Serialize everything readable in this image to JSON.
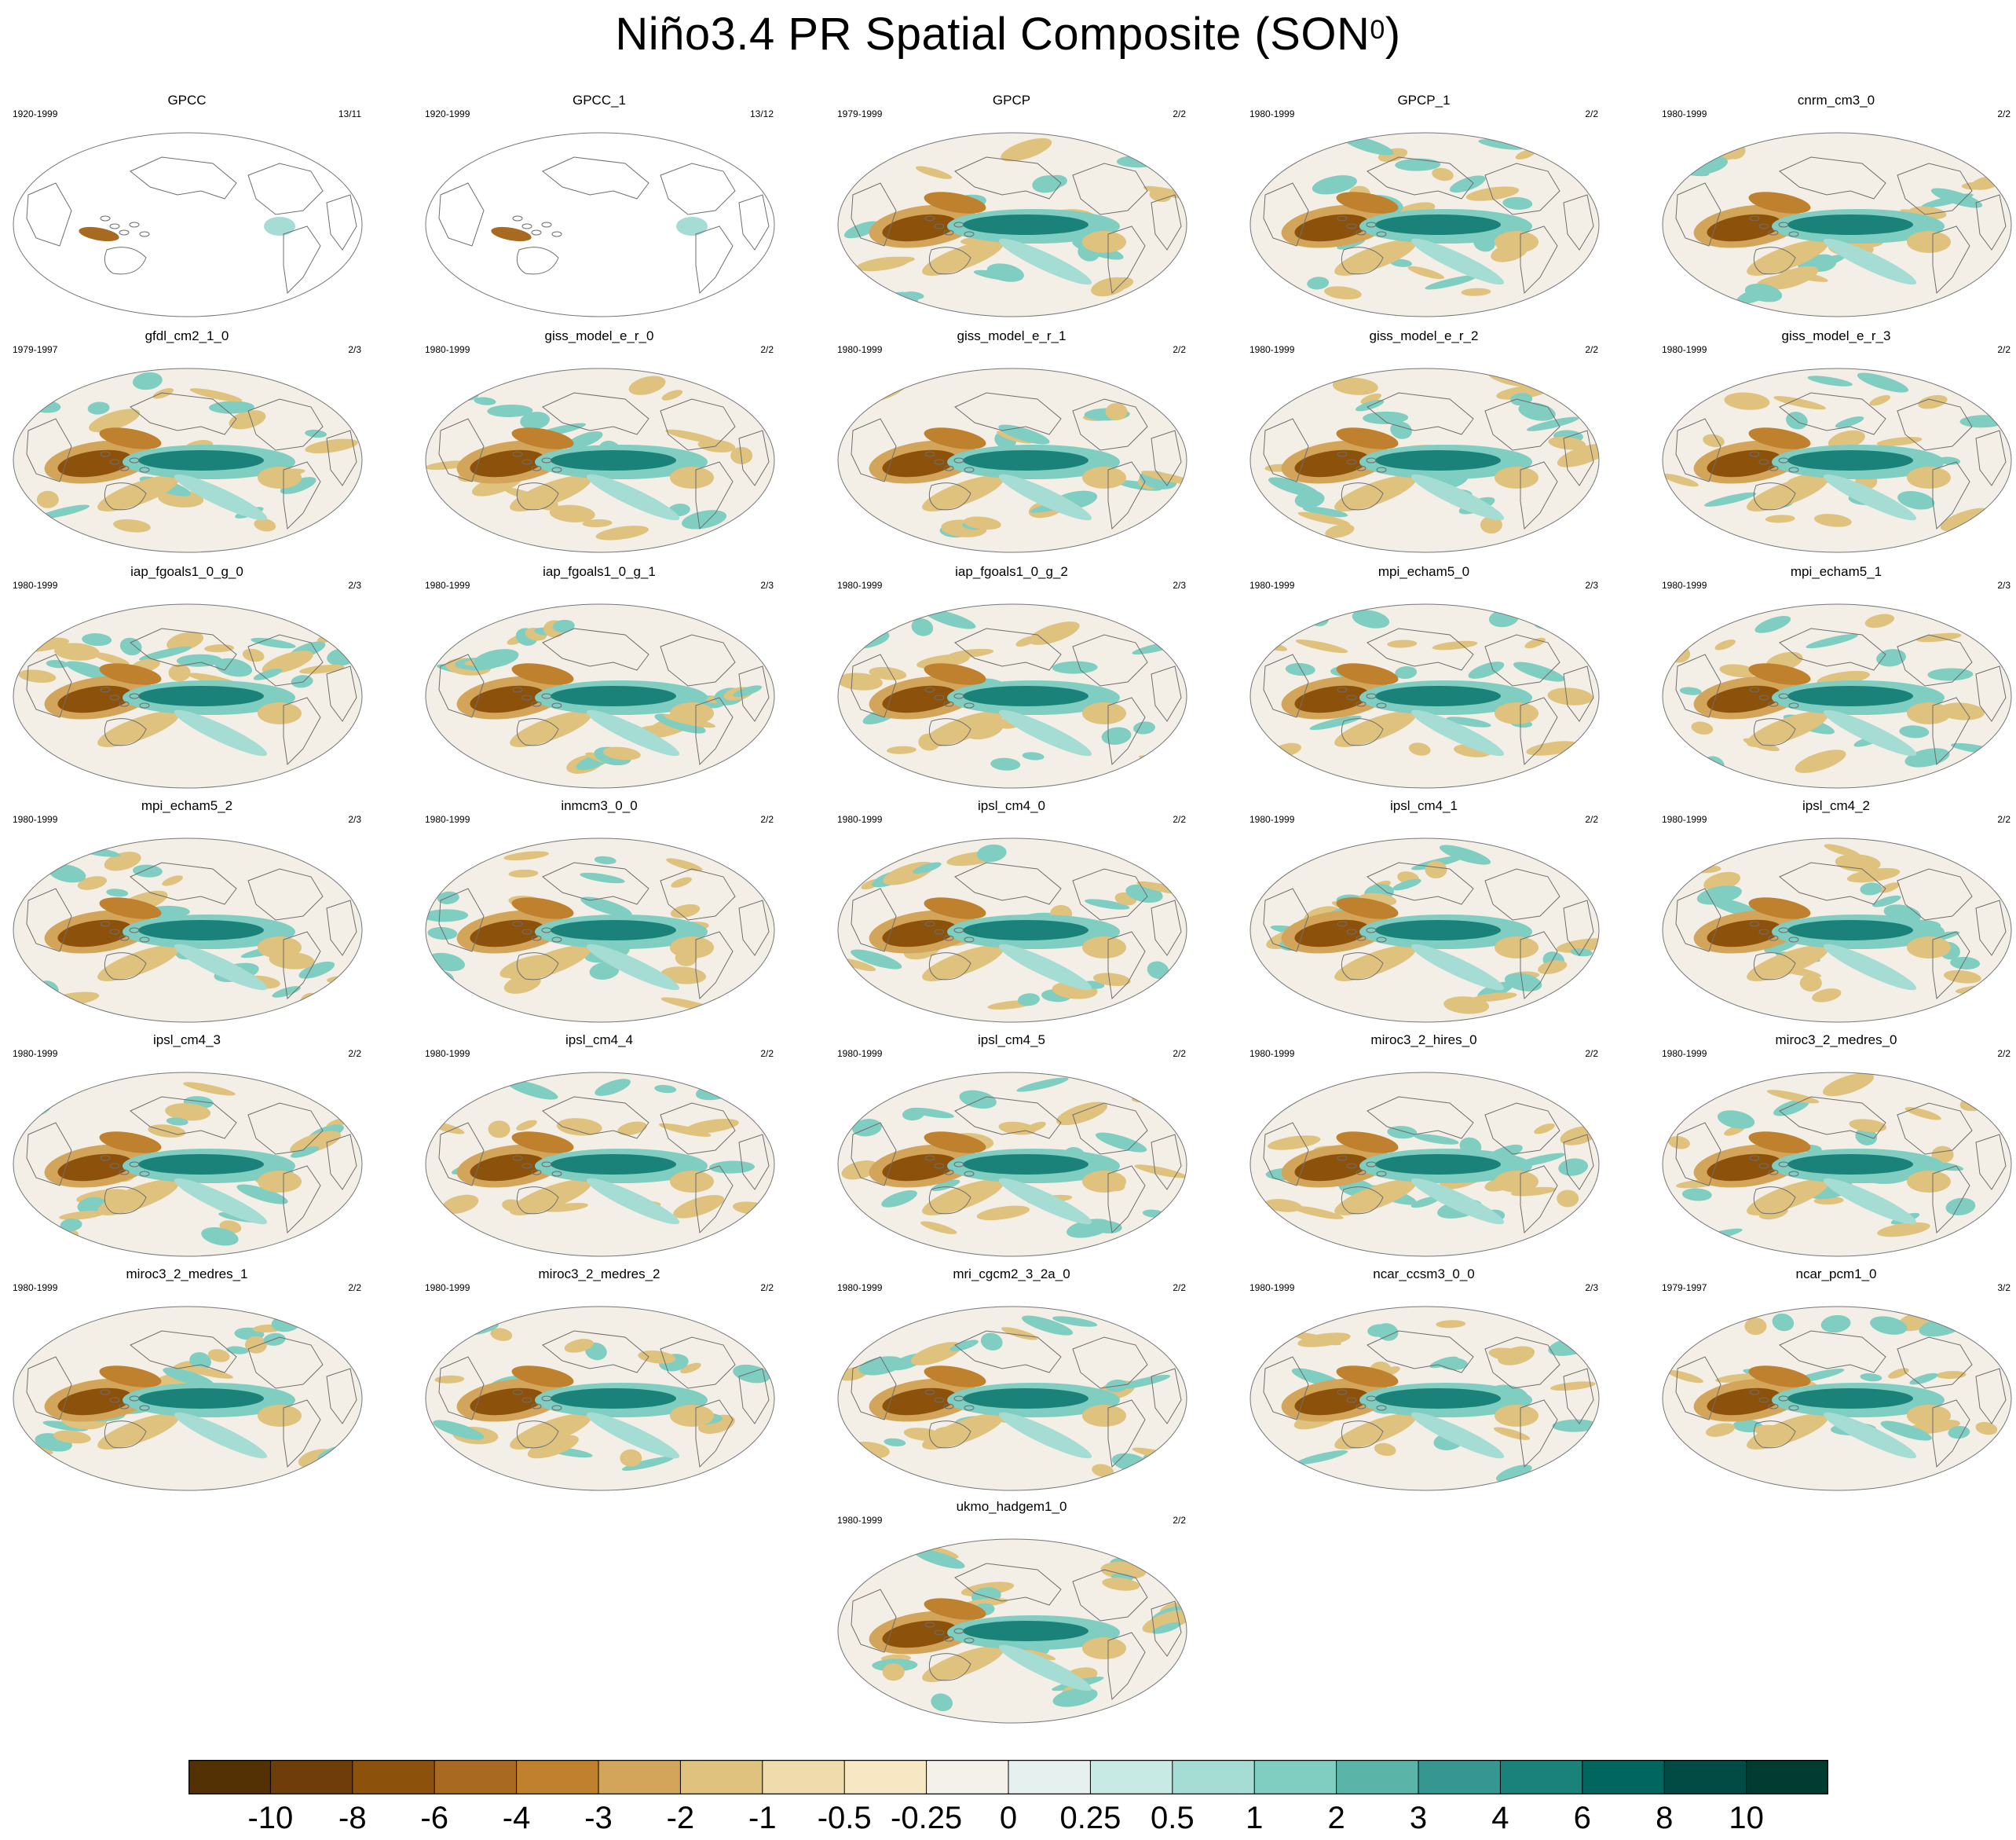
{
  "title": "Niño3.4 PR Spatial Composite (SON",
  "title_superscript": "0",
  "title_suffix": ")",
  "panels": [
    {
      "name": "GPCC",
      "years": "1920-1999",
      "count": "13/11",
      "style": "obs-land",
      "colors": {
        "wc": "#b1dbd3",
        "eq": "#e6ecea",
        "wp": "#9c6220"
      }
    },
    {
      "name": "GPCC_1",
      "years": "1920-1999",
      "count": "13/12",
      "style": "obs-land",
      "colors": {
        "wc": "#b1dbd3",
        "eq": "#e6ecea",
        "wp": "#9c6220"
      }
    },
    {
      "name": "GPCP",
      "years": "1979-1999",
      "count": "2/2",
      "style": "full",
      "colors": {
        "wc": "#10766a",
        "eq": "#ffffff",
        "wp": "#a56516"
      }
    },
    {
      "name": "GPCP_1",
      "years": "1980-1999",
      "count": "2/2",
      "style": "full",
      "colors": {
        "wc": "#10766a",
        "eq": "#ffffff",
        "wp": "#a56516"
      }
    },
    {
      "name": "cnrm_cm3_0",
      "years": "1980-1999",
      "count": "2/2",
      "style": "full",
      "colors": {
        "wc": "#10766a",
        "eq": "#ffffff",
        "wp": "#a56516"
      }
    },
    {
      "name": "gfdl_cm2_1_0",
      "years": "1979-1997",
      "count": "2/3",
      "style": "full",
      "colors": {
        "wc": "#10766a",
        "eq": "#ffffff",
        "wp": "#a56516"
      }
    },
    {
      "name": "giss_model_e_r_0",
      "years": "1980-1999",
      "count": "2/2",
      "style": "full",
      "colors": {
        "wc": "#10766a",
        "eq": "#ffffff",
        "wp": "#a56516"
      }
    },
    {
      "name": "giss_model_e_r_1",
      "years": "1980-1999",
      "count": "2/2",
      "style": "full",
      "colors": {
        "wc": "#10766a",
        "eq": "#ffffff",
        "wp": "#a56516"
      }
    },
    {
      "name": "giss_model_e_r_2",
      "years": "1980-1999",
      "count": "2/2",
      "style": "full",
      "colors": {
        "wc": "#10766a",
        "eq": "#ffffff",
        "wp": "#a56516"
      }
    },
    {
      "name": "giss_model_e_r_3",
      "years": "1980-1999",
      "count": "2/2",
      "style": "full",
      "colors": {
        "wc": "#10766a",
        "eq": "#ffffff",
        "wp": "#a56516"
      }
    },
    {
      "name": "iap_fgoals1_0_g_0",
      "years": "1980-1999",
      "count": "2/3",
      "style": "full",
      "colors": {
        "wc": "#10766a",
        "eq": "#ffffff",
        "wp": "#a56516"
      }
    },
    {
      "name": "iap_fgoals1_0_g_1",
      "years": "1980-1999",
      "count": "2/3",
      "style": "full",
      "colors": {
        "wc": "#10766a",
        "eq": "#ffffff",
        "wp": "#a56516"
      }
    },
    {
      "name": "iap_fgoals1_0_g_2",
      "years": "1980-1999",
      "count": "2/3",
      "style": "full",
      "colors": {
        "wc": "#10766a",
        "eq": "#ffffff",
        "wp": "#a56516"
      }
    },
    {
      "name": "mpi_echam5_0",
      "years": "1980-1999",
      "count": "2/3",
      "style": "full",
      "colors": {
        "wc": "#10766a",
        "eq": "#ffffff",
        "wp": "#a56516"
      }
    },
    {
      "name": "mpi_echam5_1",
      "years": "1980-1999",
      "count": "2/3",
      "style": "full",
      "colors": {
        "wc": "#10766a",
        "eq": "#ffffff",
        "wp": "#a56516"
      }
    },
    {
      "name": "mpi_echam5_2",
      "years": "1980-1999",
      "count": "2/3",
      "style": "full",
      "colors": {
        "wc": "#10766a",
        "eq": "#ffffff",
        "wp": "#a56516"
      }
    },
    {
      "name": "inmcm3_0_0",
      "years": "1980-1999",
      "count": "2/2",
      "style": "full",
      "colors": {
        "wc": "#10766a",
        "eq": "#ffffff",
        "wp": "#a56516"
      }
    },
    {
      "name": "ipsl_cm4_0",
      "years": "1980-1999",
      "count": "2/2",
      "style": "full",
      "colors": {
        "wc": "#10766a",
        "eq": "#ffffff",
        "wp": "#a56516"
      }
    },
    {
      "name": "ipsl_cm4_1",
      "years": "1980-1999",
      "count": "2/2",
      "style": "full",
      "colors": {
        "wc": "#10766a",
        "eq": "#ffffff",
        "wp": "#a56516"
      }
    },
    {
      "name": "ipsl_cm4_2",
      "years": "1980-1999",
      "count": "2/2",
      "style": "full",
      "colors": {
        "wc": "#10766a",
        "eq": "#ffffff",
        "wp": "#a56516"
      }
    },
    {
      "name": "ipsl_cm4_3",
      "years": "1980-1999",
      "count": "2/2",
      "style": "full",
      "colors": {
        "wc": "#10766a",
        "eq": "#ffffff",
        "wp": "#a56516"
      }
    },
    {
      "name": "ipsl_cm4_4",
      "years": "1980-1999",
      "count": "2/2",
      "style": "full",
      "colors": {
        "wc": "#10766a",
        "eq": "#ffffff",
        "wp": "#a56516"
      }
    },
    {
      "name": "ipsl_cm4_5",
      "years": "1980-1999",
      "count": "2/2",
      "style": "full",
      "colors": {
        "wc": "#10766a",
        "eq": "#ffffff",
        "wp": "#a56516"
      }
    },
    {
      "name": "miroc3_2_hires_0",
      "years": "1980-1999",
      "count": "2/2",
      "style": "full",
      "colors": {
        "wc": "#10766a",
        "eq": "#ffffff",
        "wp": "#a56516"
      }
    },
    {
      "name": "miroc3_2_medres_0",
      "years": "1980-1999",
      "count": "2/2",
      "style": "full",
      "colors": {
        "wc": "#10766a",
        "eq": "#ffffff",
        "wp": "#a56516"
      }
    },
    {
      "name": "miroc3_2_medres_1",
      "years": "1980-1999",
      "count": "2/2",
      "style": "full",
      "colors": {
        "wc": "#10766a",
        "eq": "#ffffff",
        "wp": "#a56516"
      }
    },
    {
      "name": "miroc3_2_medres_2",
      "years": "1980-1999",
      "count": "2/2",
      "style": "full",
      "colors": {
        "wc": "#10766a",
        "eq": "#ffffff",
        "wp": "#a56516"
      }
    },
    {
      "name": "mri_cgcm2_3_2a_0",
      "years": "1980-1999",
      "count": "2/2",
      "style": "full",
      "colors": {
        "wc": "#10766a",
        "eq": "#ffffff",
        "wp": "#a56516"
      }
    },
    {
      "name": "ncar_ccsm3_0_0",
      "years": "1980-1999",
      "count": "2/3",
      "style": "full",
      "colors": {
        "wc": "#10766a",
        "eq": "#ffffff",
        "wp": "#a56516"
      }
    },
    {
      "name": "ncar_pcm1_0",
      "years": "1979-1997",
      "count": "3/2",
      "style": "full",
      "colors": {
        "wc": "#10766a",
        "eq": "#ffffff",
        "wp": "#a56516"
      }
    },
    {
      "name": "ukmo_hadgem1_0",
      "years": "1980-1999",
      "count": "2/2",
      "style": "full",
      "colors": {
        "wc": "#10766a",
        "eq": "#ffffff",
        "wp": "#a56516"
      }
    }
  ],
  "colorbar": {
    "colors": [
      "#543005",
      "#6f3d09",
      "#8c510a",
      "#a86a21",
      "#bf812d",
      "#d3a55a",
      "#dfc27d",
      "#eedcad",
      "#f6e8c3",
      "#f4f1ea",
      "#e6f1ef",
      "#c7eae5",
      "#a5dcd3",
      "#80cdc1",
      "#5ab4a8",
      "#35978f",
      "#1a8278",
      "#01665e",
      "#014b44",
      "#003c30"
    ],
    "labels": [
      "-10",
      "-8",
      "-6",
      "-4",
      "-3",
      "-2",
      "-1",
      "-0.5",
      "-0.25",
      "0",
      "0.25",
      "0.5",
      "1",
      "2",
      "3",
      "4",
      "6",
      "8",
      "10"
    ]
  }
}
